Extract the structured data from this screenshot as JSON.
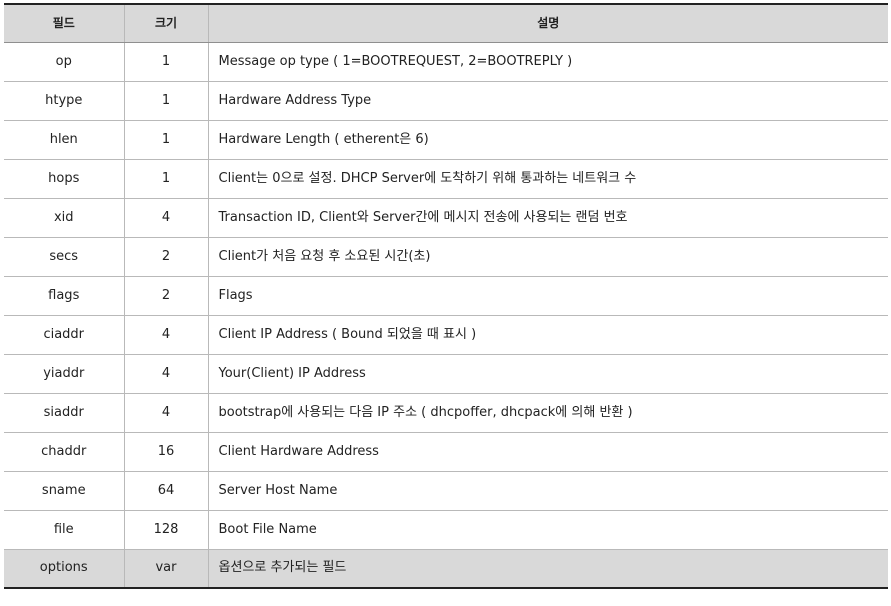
{
  "table": {
    "headers": [
      "필드",
      "크기",
      "설명"
    ],
    "rows": [
      {
        "field": "op",
        "size": "1",
        "desc": "Message op type ( 1=BOOTREQUEST, 2=BOOTREPLY )"
      },
      {
        "field": "htype",
        "size": "1",
        "desc": "Hardware Address Type"
      },
      {
        "field": "hlen",
        "size": "1",
        "desc": "Hardware Length ( etherent은 6)"
      },
      {
        "field": "hops",
        "size": "1",
        "desc": "Client는 0으로 설정. DHCP Server에 도착하기 위해 통과하는 네트워크 수"
      },
      {
        "field": "xid",
        "size": "4",
        "desc": "Transaction ID, Client와 Server간에 메시지 전송에 사용되는 랜덤 번호"
      },
      {
        "field": "secs",
        "size": "2",
        "desc": "Client가 처음 요청 후 소요된 시간(초)"
      },
      {
        "field": "flags",
        "size": "2",
        "desc": "Flags"
      },
      {
        "field": "ciaddr",
        "size": "4",
        "desc": "Client IP Address ( Bound 되었을 때 표시 )"
      },
      {
        "field": "yiaddr",
        "size": "4",
        "desc": "Your(Client) IP Address"
      },
      {
        "field": "siaddr",
        "size": "4",
        "desc": "bootstrap에 사용되는 다음 IP 주소 ( dhcpoffer, dhcpack에 의해 반환 )"
      },
      {
        "field": "chaddr",
        "size": "16",
        "desc": "Client Hardware Address"
      },
      {
        "field": "sname",
        "size": "64",
        "desc": "Server Host Name"
      },
      {
        "field": "file",
        "size": "128",
        "desc": "Boot File Name"
      },
      {
        "field": "options",
        "size": "var",
        "desc": "옵션으로 추가되는 필드"
      }
    ]
  },
  "colors": {
    "header_bg": "#d9d9d9",
    "border": "#b9b9b9",
    "rule": "#222222"
  }
}
